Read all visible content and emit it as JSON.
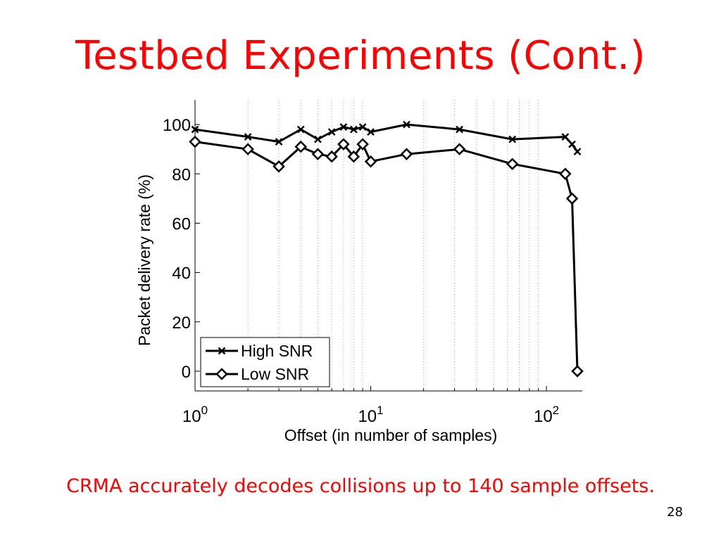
{
  "slide": {
    "title": "Testbed Experiments (Cont.)",
    "caption": "CRMA accurately decodes collisions up to 140 sample offsets.",
    "page_number": "28",
    "title_color": "#ff0000",
    "caption_color": "#ff0000"
  },
  "chart_data": {
    "type": "line",
    "title": "",
    "xlabel": "Offset (in number of samples)",
    "ylabel": "Packet delivery rate (%)",
    "xscale": "log",
    "xlim": [
      1,
      160
    ],
    "ylim": [
      -8,
      110
    ],
    "x_ticks": [
      {
        "value": 1,
        "base": "10",
        "exp": "0"
      },
      {
        "value": 10,
        "base": "10",
        "exp": "1"
      },
      {
        "value": 100,
        "base": "10",
        "exp": "2"
      }
    ],
    "y_ticks": [
      0,
      20,
      40,
      60,
      80,
      100
    ],
    "x_grid": "minor-dotted",
    "legend_position": "bottom-left",
    "series": [
      {
        "name": "High SNR",
        "marker": "x",
        "color": "#000000",
        "x": [
          1,
          2,
          3,
          4,
          5,
          6,
          7,
          8,
          9,
          10,
          16,
          32,
          64,
          128,
          140,
          150
        ],
        "y": [
          98,
          95,
          93,
          98,
          94,
          97,
          99,
          98,
          99,
          97,
          100,
          98,
          94,
          95,
          92,
          89
        ]
      },
      {
        "name": "Low SNR",
        "marker": "diamond",
        "color": "#000000",
        "x": [
          1,
          2,
          3,
          4,
          5,
          6,
          7,
          8,
          9,
          10,
          16,
          32,
          64,
          128,
          140,
          150
        ],
        "y": [
          93,
          90,
          83,
          91,
          88,
          87,
          92,
          87,
          92,
          85,
          88,
          90,
          84,
          80,
          70,
          0
        ]
      }
    ]
  }
}
